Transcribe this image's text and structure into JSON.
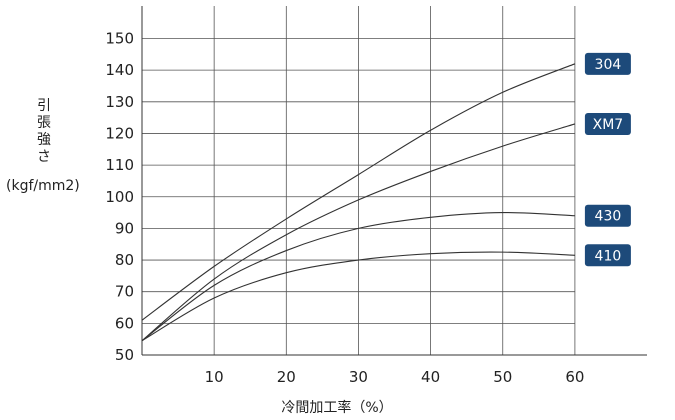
{
  "chart_data": {
    "type": "line",
    "xlabel": "冷間加工率（%）",
    "ylabel_vertical": "引張強さ",
    "ylabel_unit": "(kgf/mm2)",
    "xlim": [
      0,
      70
    ],
    "ylim": [
      50,
      160
    ],
    "x_ticks": [
      10,
      20,
      30,
      40,
      50,
      60
    ],
    "y_ticks": [
      50,
      60,
      70,
      80,
      90,
      100,
      110,
      120,
      130,
      140,
      150
    ],
    "grid": "on",
    "legend_placement": "right (labels at line ends)",
    "line_color": "#333333",
    "label_bg_color": "#1d4a7a",
    "series": [
      {
        "name": "304",
        "x": [
          0,
          10,
          20,
          30,
          40,
          50,
          60
        ],
        "y": [
          61,
          78,
          93,
          107,
          121,
          133,
          142
        ]
      },
      {
        "name": "XM7",
        "x": [
          0,
          10,
          20,
          30,
          40,
          50,
          60
        ],
        "y": [
          54.5,
          74,
          88,
          99,
          108,
          116,
          123
        ]
      },
      {
        "name": "430",
        "x": [
          0,
          10,
          20,
          30,
          40,
          50,
          60
        ],
        "y": [
          54.5,
          72,
          83,
          90,
          93.5,
          95,
          94
        ]
      },
      {
        "name": "410",
        "x": [
          0,
          10,
          20,
          30,
          40,
          50,
          60
        ],
        "y": [
          54.5,
          68,
          76,
          80,
          82,
          82.5,
          81.5
        ]
      }
    ]
  }
}
